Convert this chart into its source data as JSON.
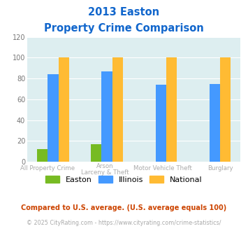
{
  "title_line1": "2013 Easton",
  "title_line2": "Property Crime Comparison",
  "cat_labels_line1": [
    "All Property Crime",
    "Arson",
    "Motor Vehicle Theft",
    "Burglary"
  ],
  "cat_labels_line2": [
    "",
    "Larceny & Theft",
    "",
    ""
  ],
  "easton_values": [
    12,
    17,
    0,
    0
  ],
  "illinois_values": [
    84,
    87,
    74,
    75
  ],
  "national_values": [
    100,
    100,
    100,
    100
  ],
  "easton_color": "#77bb22",
  "illinois_color": "#4499ff",
  "national_color": "#ffbb33",
  "ylim": [
    0,
    120
  ],
  "yticks": [
    0,
    20,
    40,
    60,
    80,
    100,
    120
  ],
  "plot_bg": "#ddeef0",
  "title_color": "#1166cc",
  "footnote1": "Compared to U.S. average. (U.S. average equals 100)",
  "footnote2": "© 2025 CityRating.com - https://www.cityrating.com/crime-statistics/",
  "footnote1_color": "#cc4400",
  "footnote2_color": "#aaaaaa",
  "legend_labels": [
    "Easton",
    "Illinois",
    "National"
  ],
  "xlabel_color": "#aaaaaa"
}
